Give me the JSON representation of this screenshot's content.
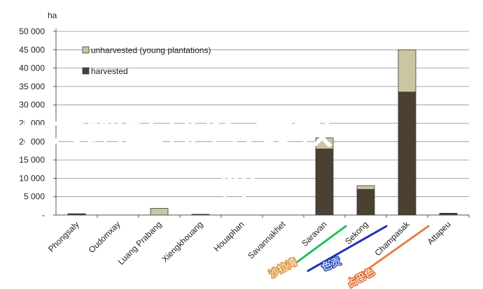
{
  "chart_data": {
    "type": "bar",
    "stacked": true,
    "unit_label": "ha",
    "categories": [
      "Phongsaly",
      "Oudomxay",
      "Luang Prabang",
      "Xiengkhouang",
      "Houaphan",
      "Savannakhet",
      "Saravan",
      "Sekong",
      "Champasak",
      "Attapeu"
    ],
    "series": [
      {
        "name": "harvested",
        "color": "#4a4133",
        "values": [
          250,
          0,
          0,
          150,
          0,
          0,
          18000,
          7000,
          33500,
          400
        ]
      },
      {
        "name": "unharvested (young plantations)",
        "color": "#cbc6a2",
        "values": [
          100,
          0,
          1800,
          50,
          0,
          0,
          3000,
          1000,
          11500,
          100
        ]
      }
    ],
    "ylim": [
      0,
      50000
    ],
    "yticks": [
      0,
      5000,
      10000,
      15000,
      20000,
      25000,
      30000,
      35000,
      40000,
      45000,
      50000
    ],
    "ytick_labels": [
      "-",
      "5 000",
      "10 000",
      "15 000",
      "20 000",
      "25 000",
      "30 000",
      "35 000",
      "40 000",
      "45 000",
      "50 000"
    ],
    "grid": "horizontal",
    "legend_position": "top-left-inside"
  },
  "overlay": {
    "title_line1": "十大网红排名,女教",
    "title_line2": "师",
    "small_items": [
      {
        "text": "沙拉湾",
        "color": "#d8973c"
      },
      {
        "text": "色贡",
        "color": "#2850b8"
      },
      {
        "text": "占巴色",
        "color": "#e06a30"
      }
    ],
    "lines": [
      {
        "color": "#22c060"
      },
      {
        "color": "#2030b0"
      },
      {
        "color": "#e8804a"
      }
    ]
  }
}
